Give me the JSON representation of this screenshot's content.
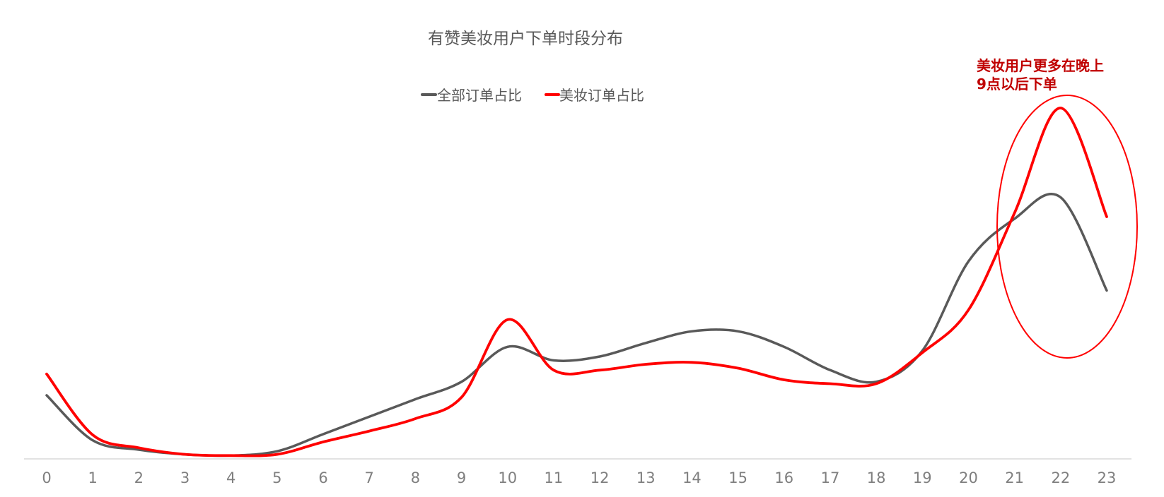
{
  "chart_data": {
    "type": "line",
    "title": "有赞美妆用户下单时段分布",
    "xlabel": "",
    "ylabel": "",
    "x": [
      "0",
      "1",
      "2",
      "3",
      "4",
      "5",
      "6",
      "7",
      "8",
      "9",
      "10",
      "11",
      "12",
      "13",
      "14",
      "15",
      "16",
      "17",
      "18",
      "19",
      "20",
      "21",
      "22",
      "23"
    ],
    "series": [
      {
        "name": "全部订单占比",
        "color": "#595959",
        "values": [
          1.6,
          0.44,
          0.2,
          0.08,
          0.05,
          0.16,
          0.6,
          1.05,
          1.5,
          1.95,
          2.85,
          2.5,
          2.6,
          2.95,
          3.25,
          3.25,
          2.85,
          2.25,
          1.95,
          2.75,
          5.05,
          6.15,
          6.7,
          4.3
        ]
      },
      {
        "name": "美妆订单占比",
        "color": "#ff0000",
        "values": [
          2.15,
          0.58,
          0.25,
          0.08,
          0.05,
          0.08,
          0.4,
          0.68,
          1.0,
          1.55,
          3.55,
          2.25,
          2.25,
          2.4,
          2.45,
          2.3,
          2.0,
          1.9,
          1.9,
          2.7,
          3.8,
          6.3,
          9.0,
          6.2
        ]
      }
    ],
    "ylim": [
      0,
      10
    ],
    "grid": false,
    "legend": "top-center",
    "annotation": {
      "lines": [
        "美妆用户更多在晚上",
        "9点以后下单"
      ],
      "color": "#c00000",
      "highlight": "ellipse around x 21-23"
    }
  }
}
